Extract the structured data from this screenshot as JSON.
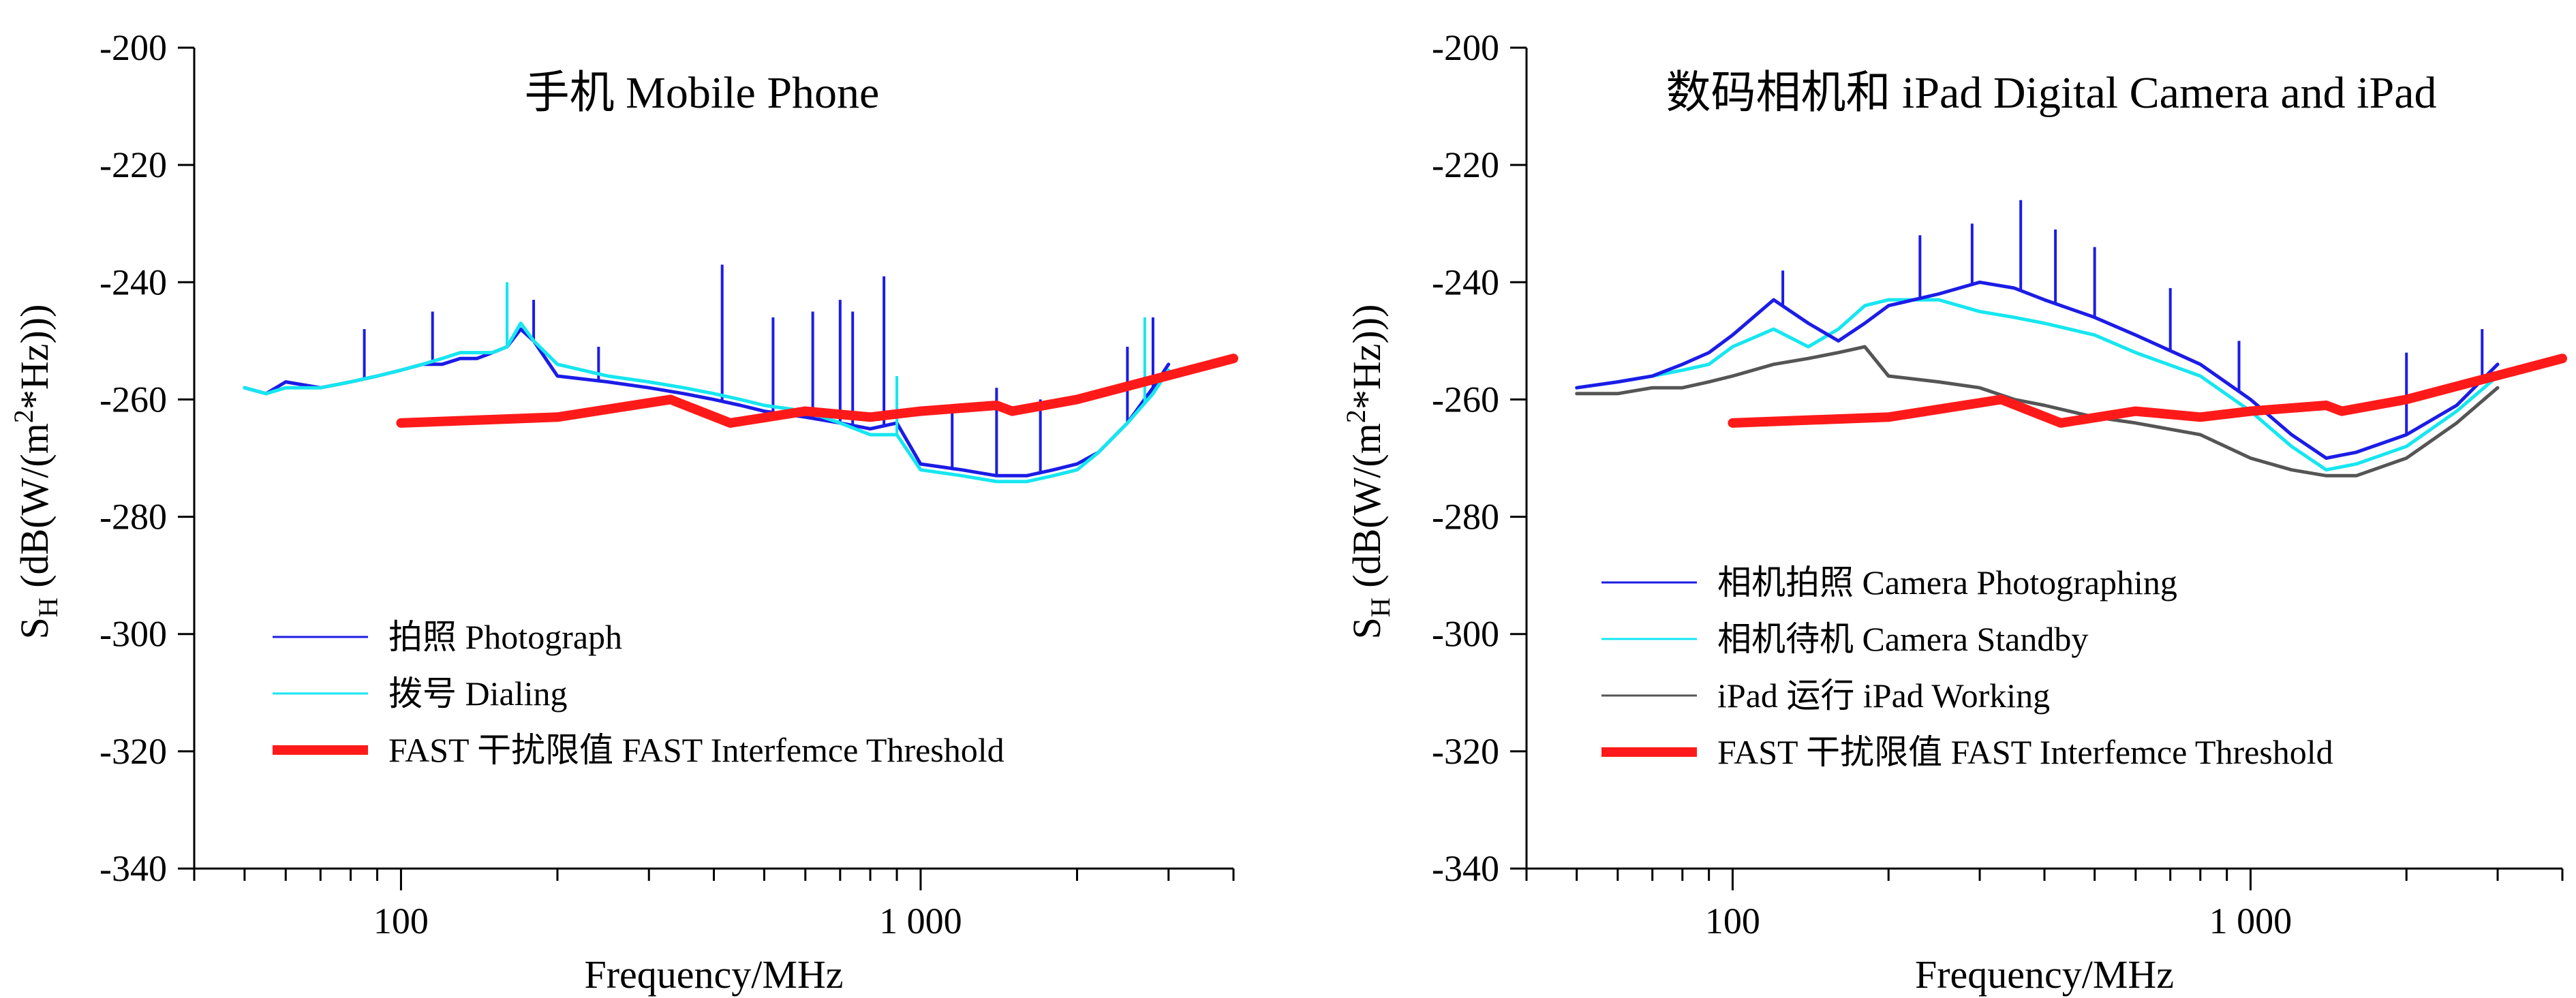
{
  "colors": {
    "photo": "#1c1ce6",
    "dial": "#16e6f0",
    "ipad": "#555555",
    "threshold": "#ff1a1a",
    "axis": "#000000"
  },
  "chart_data": [
    {
      "type": "line",
      "title": "手机 Mobile Phone",
      "xlabel": "Frequency/MHz",
      "ylabel": "S_H (dB(W/(m^2*Hz)))",
      "xscale": "log",
      "xlim": [
        40,
        4000
      ],
      "ylim": [
        -340,
        -200
      ],
      "yticks": [
        -200,
        -220,
        -240,
        -260,
        -280,
        -300,
        -320,
        -340
      ],
      "ytick_labels": [
        "-200",
        "-220",
        "-240",
        "-260",
        "-280",
        "-300",
        "-320",
        "-340"
      ],
      "xticks": [
        100,
        1000
      ],
      "xtick_labels": [
        "100",
        "1 000"
      ],
      "legend_position": "bottom-left",
      "series": [
        {
          "name": "拍照 Photograph",
          "color_key": "photo",
          "x": [
            50,
            55,
            60,
            70,
            80,
            90,
            100,
            110,
            120,
            130,
            140,
            150,
            160,
            170,
            180,
            200,
            250,
            300,
            350,
            400,
            450,
            500,
            600,
            700,
            800,
            900,
            1000,
            1200,
            1400,
            1600,
            1800,
            2000,
            2200,
            2500,
            2800,
            3000
          ],
          "y": [
            -258,
            -259,
            -257,
            -258,
            -257,
            -256,
            -255,
            -254,
            -254,
            -253,
            -253,
            -252,
            -251,
            -248,
            -250,
            -256,
            -257,
            -258,
            -259,
            -260,
            -261,
            -262,
            -263,
            -264,
            -265,
            -264,
            -271,
            -272,
            -273,
            -273,
            -272,
            -271,
            -269,
            -264,
            -258,
            -254
          ],
          "spikes": [
            [
              85,
              -248
            ],
            [
              115,
              -245
            ],
            [
              160,
              -241
            ],
            [
              180,
              -243
            ],
            [
              240,
              -251
            ],
            [
              415,
              -237
            ],
            [
              520,
              -246
            ],
            [
              620,
              -245
            ],
            [
              700,
              -243
            ],
            [
              740,
              -245
            ],
            [
              850,
              -239
            ],
            [
              1150,
              -262
            ],
            [
              1400,
              -258
            ],
            [
              1700,
              -260
            ],
            [
              2500,
              -251
            ],
            [
              2800,
              -246
            ]
          ]
        },
        {
          "name": "拨号 Dialing",
          "color_key": "dial",
          "x": [
            50,
            55,
            60,
            70,
            80,
            90,
            100,
            110,
            120,
            130,
            140,
            150,
            160,
            170,
            180,
            200,
            250,
            300,
            350,
            400,
            450,
            500,
            600,
            700,
            800,
            900,
            1000,
            1200,
            1400,
            1600,
            1800,
            2000,
            2200,
            2500,
            2800,
            3000
          ],
          "y": [
            -258,
            -259,
            -258,
            -258,
            -257,
            -256,
            -255,
            -254,
            -253,
            -252,
            -252,
            -252,
            -251,
            -247,
            -250,
            -254,
            -256,
            -257,
            -258,
            -259,
            -260,
            -261,
            -262,
            -264,
            -266,
            -266,
            -272,
            -273,
            -274,
            -274,
            -273,
            -272,
            -269,
            -264,
            -259,
            -255
          ],
          "spikes": [
            [
              160,
              -240
            ],
            [
              900,
              -256
            ],
            [
              2700,
              -246
            ]
          ]
        },
        {
          "name": "FAST 干扰限值 FAST Interfemce Threshold",
          "color_key": "threshold",
          "x": [
            100,
            200,
            330,
            430,
            600,
            800,
            1000,
            1400,
            1500,
            2000,
            4000
          ],
          "y": [
            -264,
            -263,
            -260,
            -264,
            -262,
            -263,
            -262,
            -261,
            -262,
            -260,
            -253
          ]
        }
      ]
    },
    {
      "type": "line",
      "title": "数码相机和 iPad  Digital Camera and iPad",
      "xlabel": "Frequency/MHz",
      "ylabel": "S_H (dB(W/(m^2*Hz)))",
      "xscale": "log",
      "xlim": [
        40,
        4000
      ],
      "ylim": [
        -340,
        -200
      ],
      "yticks": [
        -200,
        -220,
        -240,
        -260,
        -280,
        -300,
        -320,
        -340
      ],
      "ytick_labels": [
        "-200",
        "-220",
        "-240",
        "-260",
        "-280",
        "-300",
        "-320",
        "-340"
      ],
      "xticks": [
        100,
        1000
      ],
      "xtick_labels": [
        "100",
        "1 000"
      ],
      "legend_position": "bottom-left",
      "series": [
        {
          "name": "iPad 运行 iPad Working",
          "color_key": "ipad",
          "x": [
            50,
            60,
            70,
            80,
            90,
            100,
            120,
            140,
            160,
            180,
            200,
            250,
            300,
            350,
            400,
            500,
            600,
            800,
            1000,
            1200,
            1400,
            1600,
            2000,
            2500,
            3000
          ],
          "y": [
            -259,
            -259,
            -258,
            -258,
            -257,
            -256,
            -254,
            -253,
            -252,
            -251,
            -256,
            -257,
            -258,
            -260,
            -261,
            -263,
            -264,
            -266,
            -270,
            -272,
            -273,
            -273,
            -270,
            -264,
            -258
          ],
          "spikes": []
        },
        {
          "name": "相机待机 Camera Standby",
          "color_key": "dial",
          "x": [
            50,
            60,
            70,
            80,
            90,
            100,
            120,
            140,
            160,
            180,
            200,
            250,
            300,
            350,
            400,
            500,
            600,
            800,
            1000,
            1200,
            1400,
            1600,
            2000,
            2500,
            3000
          ],
          "y": [
            -258,
            -257,
            -256,
            -255,
            -254,
            -251,
            -248,
            -251,
            -248,
            -244,
            -243,
            -243,
            -245,
            -246,
            -247,
            -249,
            -252,
            -256,
            -262,
            -268,
            -272,
            -271,
            -268,
            -262,
            -256
          ],
          "spikes": []
        },
        {
          "name": "相机拍照 Camera Photographing",
          "color_key": "photo",
          "x": [
            50,
            60,
            70,
            80,
            90,
            100,
            120,
            140,
            160,
            180,
            200,
            250,
            300,
            350,
            400,
            500,
            600,
            800,
            1000,
            1200,
            1400,
            1600,
            2000,
            2500,
            3000
          ],
          "y": [
            -258,
            -257,
            -256,
            -254,
            -252,
            -249,
            -243,
            -247,
            -250,
            -247,
            -244,
            -242,
            -240,
            -241,
            -243,
            -246,
            -249,
            -254,
            -260,
            -266,
            -270,
            -269,
            -266,
            -261,
            -254
          ],
          "spikes": [
            [
              125,
              -238
            ],
            [
              230,
              -232
            ],
            [
              290,
              -230
            ],
            [
              360,
              -226
            ],
            [
              420,
              -231
            ],
            [
              500,
              -234
            ],
            [
              700,
              -241
            ],
            [
              950,
              -250
            ],
            [
              2000,
              -252
            ],
            [
              2800,
              -248
            ]
          ]
        },
        {
          "name": "FAST 干扰限值 FAST Interfemce Threshold",
          "color_key": "threshold",
          "x": [
            100,
            200,
            330,
            430,
            600,
            800,
            1000,
            1400,
            1500,
            2000,
            4000
          ],
          "y": [
            -264,
            -263,
            -260,
            -264,
            -262,
            -263,
            -262,
            -261,
            -262,
            -260,
            -253
          ]
        }
      ]
    }
  ]
}
